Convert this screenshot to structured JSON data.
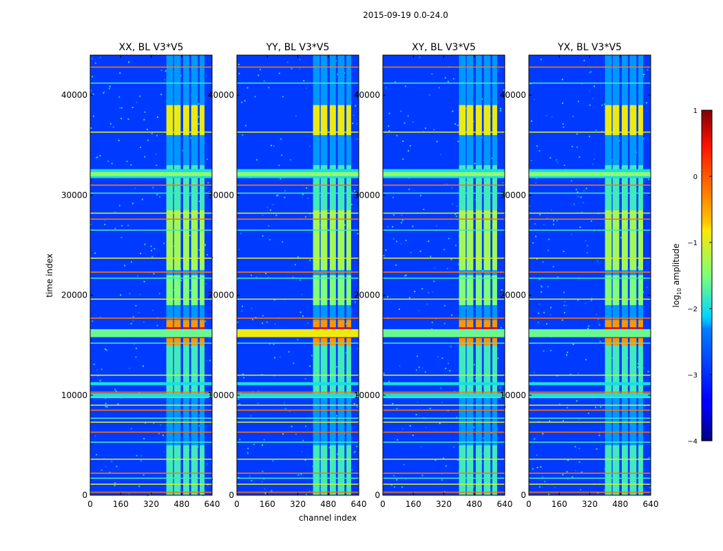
{
  "figure": {
    "suptitle": "2015-09-19 0.0-24.0"
  },
  "chart_data": {
    "type": "heatmap",
    "colormap": "jet",
    "shared_xlabel": "channel index",
    "shared_ylabel": "time index",
    "xlim": [
      0,
      640
    ],
    "ylim": [
      0,
      44000
    ],
    "xticks": [
      0,
      160,
      320,
      480,
      640
    ],
    "yticks": [
      0,
      10000,
      20000,
      30000,
      40000
    ],
    "panels": [
      {
        "title": "XX, BL V3*V5",
        "pol": "XX"
      },
      {
        "title": "YY, BL V3*V5",
        "pol": "YY"
      },
      {
        "title": "XY, BL V3*V5",
        "pol": "XY"
      },
      {
        "title": "YX, BL V3*V5",
        "pol": "YX"
      }
    ],
    "colorbar": {
      "label": "log10 amplitude",
      "label_main": "log",
      "label_sub": "10",
      "label_rest": " amplitude",
      "min": -4,
      "max": 1,
      "ticks": [
        1,
        0,
        -1,
        -2,
        -3,
        -4
      ],
      "tick_labels": [
        "1",
        "0",
        "−1",
        "−2",
        "−3",
        "−4"
      ]
    },
    "features": {
      "active_channel_range": [
        400,
        600
      ],
      "strong_time_range": [
        15000,
        17500
      ],
      "interference_row_times": [
        300,
        1100,
        1700,
        2200,
        3600,
        5300,
        6300,
        7300,
        7700,
        8500,
        9000,
        9800,
        10300,
        12000,
        15200,
        17700,
        19600,
        21700,
        22300,
        23700,
        26500,
        27600,
        28200,
        30200,
        31000,
        36300,
        41200,
        42800
      ]
    }
  }
}
